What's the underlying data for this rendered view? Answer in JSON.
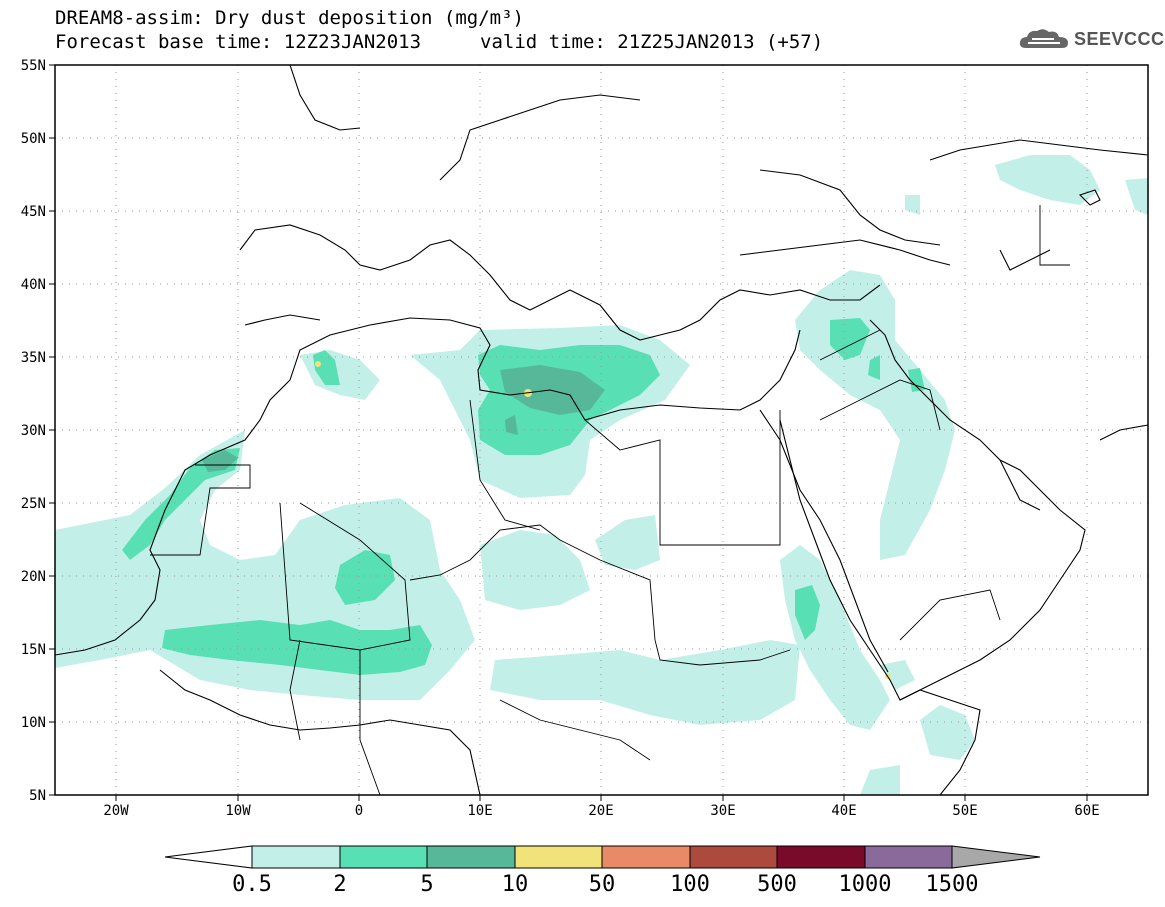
{
  "header": {
    "title": "DREAM8-assim: Dry dust deposition (mg/m³)",
    "base_time_label": "Forecast base time: 12Z23JAN2013",
    "valid_time_label": "valid time: 21Z25JAN2013 (+57)"
  },
  "logo": {
    "text": "SEEVCCC",
    "icon": "cloud-logo-icon"
  },
  "map": {
    "region": "North Africa, Europe and Middle East",
    "lon_range": [
      -25,
      65
    ],
    "lat_range": [
      5,
      55
    ],
    "lat_labels": [
      "5N",
      "10N",
      "15N",
      "20N",
      "25N",
      "30N",
      "35N",
      "40N",
      "45N",
      "50N",
      "55N"
    ],
    "lon_labels": [
      "20W",
      "10W",
      "0",
      "10E",
      "20E",
      "30E",
      "40E",
      "50E",
      "60E"
    ],
    "grid": "dotted"
  },
  "legend": {
    "thresholds": [
      "0.5",
      "2",
      "5",
      "10",
      "50",
      "100",
      "500",
      "1000",
      "1500"
    ],
    "colors": {
      "below_min": "#ffffff",
      "c1": "#c2f0e8",
      "c2": "#58e0b4",
      "c3": "#56b898",
      "c4": "#f2e27a",
      "c5": "#e88a66",
      "c6": "#ad4a3e",
      "c7": "#7a0a2a",
      "c8": "#8a6a9a",
      "above_max": "#a8a8a8"
    }
  }
}
